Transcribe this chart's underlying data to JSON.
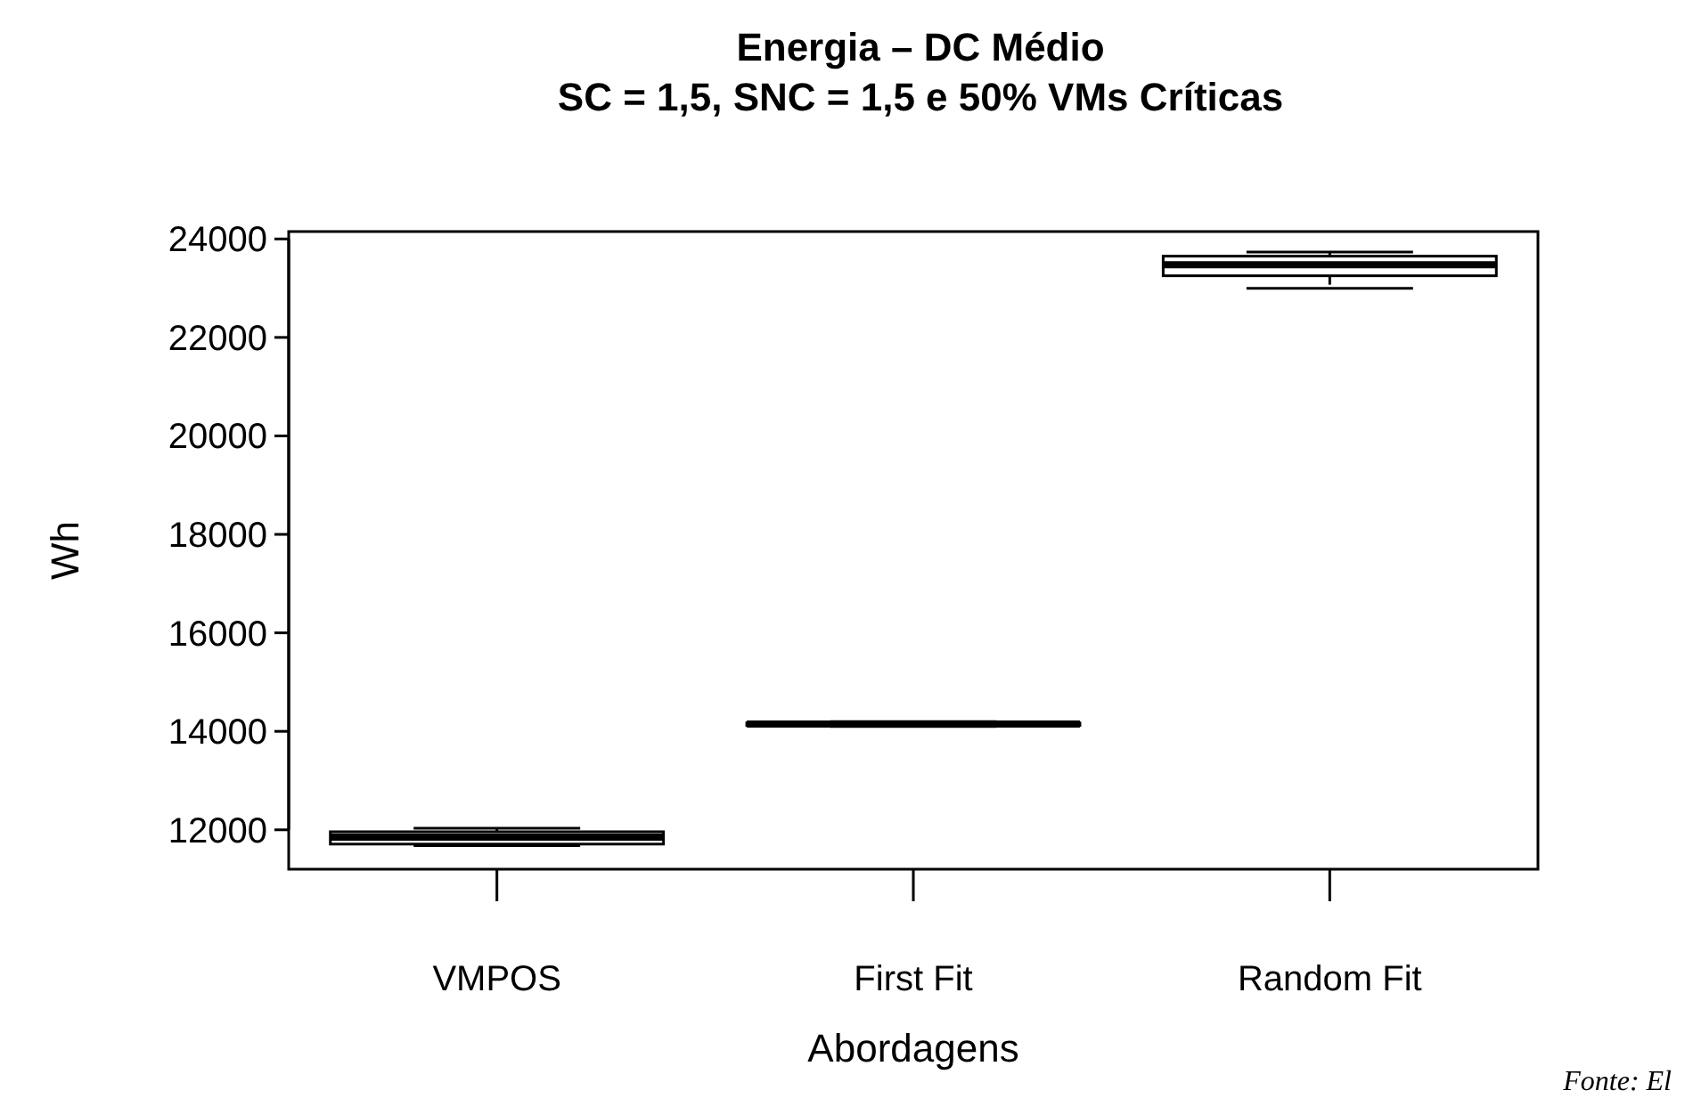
{
  "chart_data": {
    "type": "box",
    "title": "Energia – DC Médio\nSC = 1,5, SNC = 1,5 e 50% VMs Críticas",
    "xlabel": "Abordagens",
    "ylabel": "Wh",
    "categories": [
      "VMPOS",
      "First Fit",
      "Random Fit"
    ],
    "boxes": [
      {
        "low": 11680,
        "q1": 11710,
        "median": 11850,
        "q3": 11960,
        "high": 12030
      },
      {
        "low": 14100,
        "q1": 14120,
        "median": 14150,
        "q3": 14170,
        "high": 14200
      },
      {
        "low": 22999,
        "q1": 23252,
        "median": 23476,
        "q3": 23650,
        "high": 23736
      }
    ],
    "ylim": [
      11200,
      24150
    ],
    "yticks": [
      12000,
      14000,
      16000,
      18000,
      20000,
      22000,
      24000
    ],
    "grid": false,
    "annotations": [
      "Fonte: El"
    ]
  }
}
